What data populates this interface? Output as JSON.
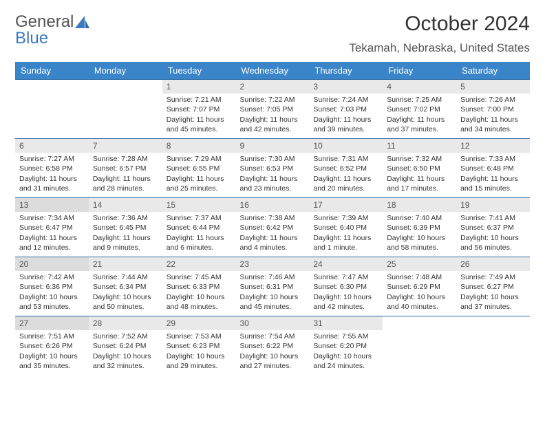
{
  "logo": {
    "word1": "General",
    "word2": "Blue"
  },
  "title": "October 2024",
  "location": "Tekamah, Nebraska, United States",
  "colors": {
    "header_bg": "#3a85c9",
    "header_text": "#ffffff",
    "row_divider": "#2b6aa3",
    "daynum_bg": "#e9e9e9",
    "daynum_bg_shaded": "#dcdcdc",
    "text": "#333333",
    "logo_gray": "#555555",
    "logo_blue": "#3a7ac0",
    "background": "#ffffff"
  },
  "day_headers": [
    "Sunday",
    "Monday",
    "Tuesday",
    "Wednesday",
    "Thursday",
    "Friday",
    "Saturday"
  ],
  "weeks": [
    [
      null,
      null,
      {
        "n": "1",
        "sr": "Sunrise: 7:21 AM",
        "ss": "Sunset: 7:07 PM",
        "d1": "Daylight: 11 hours",
        "d2": "and 45 minutes."
      },
      {
        "n": "2",
        "sr": "Sunrise: 7:22 AM",
        "ss": "Sunset: 7:05 PM",
        "d1": "Daylight: 11 hours",
        "d2": "and 42 minutes."
      },
      {
        "n": "3",
        "sr": "Sunrise: 7:24 AM",
        "ss": "Sunset: 7:03 PM",
        "d1": "Daylight: 11 hours",
        "d2": "and 39 minutes."
      },
      {
        "n": "4",
        "sr": "Sunrise: 7:25 AM",
        "ss": "Sunset: 7:02 PM",
        "d1": "Daylight: 11 hours",
        "d2": "and 37 minutes."
      },
      {
        "n": "5",
        "sr": "Sunrise: 7:26 AM",
        "ss": "Sunset: 7:00 PM",
        "d1": "Daylight: 11 hours",
        "d2": "and 34 minutes."
      }
    ],
    [
      {
        "n": "6",
        "sr": "Sunrise: 7:27 AM",
        "ss": "Sunset: 6:58 PM",
        "d1": "Daylight: 11 hours",
        "d2": "and 31 minutes."
      },
      {
        "n": "7",
        "sr": "Sunrise: 7:28 AM",
        "ss": "Sunset: 6:57 PM",
        "d1": "Daylight: 11 hours",
        "d2": "and 28 minutes."
      },
      {
        "n": "8",
        "sr": "Sunrise: 7:29 AM",
        "ss": "Sunset: 6:55 PM",
        "d1": "Daylight: 11 hours",
        "d2": "and 25 minutes."
      },
      {
        "n": "9",
        "sr": "Sunrise: 7:30 AM",
        "ss": "Sunset: 6:53 PM",
        "d1": "Daylight: 11 hours",
        "d2": "and 23 minutes."
      },
      {
        "n": "10",
        "sr": "Sunrise: 7:31 AM",
        "ss": "Sunset: 6:52 PM",
        "d1": "Daylight: 11 hours",
        "d2": "and 20 minutes."
      },
      {
        "n": "11",
        "sr": "Sunrise: 7:32 AM",
        "ss": "Sunset: 6:50 PM",
        "d1": "Daylight: 11 hours",
        "d2": "and 17 minutes."
      },
      {
        "n": "12",
        "sr": "Sunrise: 7:33 AM",
        "ss": "Sunset: 6:48 PM",
        "d1": "Daylight: 11 hours",
        "d2": "and 15 minutes."
      }
    ],
    [
      {
        "n": "13",
        "sr": "Sunrise: 7:34 AM",
        "ss": "Sunset: 6:47 PM",
        "d1": "Daylight: 11 hours",
        "d2": "and 12 minutes.",
        "shaded": true
      },
      {
        "n": "14",
        "sr": "Sunrise: 7:36 AM",
        "ss": "Sunset: 6:45 PM",
        "d1": "Daylight: 11 hours",
        "d2": "and 9 minutes."
      },
      {
        "n": "15",
        "sr": "Sunrise: 7:37 AM",
        "ss": "Sunset: 6:44 PM",
        "d1": "Daylight: 11 hours",
        "d2": "and 6 minutes."
      },
      {
        "n": "16",
        "sr": "Sunrise: 7:38 AM",
        "ss": "Sunset: 6:42 PM",
        "d1": "Daylight: 11 hours",
        "d2": "and 4 minutes."
      },
      {
        "n": "17",
        "sr": "Sunrise: 7:39 AM",
        "ss": "Sunset: 6:40 PM",
        "d1": "Daylight: 11 hours",
        "d2": "and 1 minute."
      },
      {
        "n": "18",
        "sr": "Sunrise: 7:40 AM",
        "ss": "Sunset: 6:39 PM",
        "d1": "Daylight: 10 hours",
        "d2": "and 58 minutes."
      },
      {
        "n": "19",
        "sr": "Sunrise: 7:41 AM",
        "ss": "Sunset: 6:37 PM",
        "d1": "Daylight: 10 hours",
        "d2": "and 56 minutes."
      }
    ],
    [
      {
        "n": "20",
        "sr": "Sunrise: 7:42 AM",
        "ss": "Sunset: 6:36 PM",
        "d1": "Daylight: 10 hours",
        "d2": "and 53 minutes.",
        "shaded": true
      },
      {
        "n": "21",
        "sr": "Sunrise: 7:44 AM",
        "ss": "Sunset: 6:34 PM",
        "d1": "Daylight: 10 hours",
        "d2": "and 50 minutes."
      },
      {
        "n": "22",
        "sr": "Sunrise: 7:45 AM",
        "ss": "Sunset: 6:33 PM",
        "d1": "Daylight: 10 hours",
        "d2": "and 48 minutes."
      },
      {
        "n": "23",
        "sr": "Sunrise: 7:46 AM",
        "ss": "Sunset: 6:31 PM",
        "d1": "Daylight: 10 hours",
        "d2": "and 45 minutes."
      },
      {
        "n": "24",
        "sr": "Sunrise: 7:47 AM",
        "ss": "Sunset: 6:30 PM",
        "d1": "Daylight: 10 hours",
        "d2": "and 42 minutes."
      },
      {
        "n": "25",
        "sr": "Sunrise: 7:48 AM",
        "ss": "Sunset: 6:29 PM",
        "d1": "Daylight: 10 hours",
        "d2": "and 40 minutes."
      },
      {
        "n": "26",
        "sr": "Sunrise: 7:49 AM",
        "ss": "Sunset: 6:27 PM",
        "d1": "Daylight: 10 hours",
        "d2": "and 37 minutes."
      }
    ],
    [
      {
        "n": "27",
        "sr": "Sunrise: 7:51 AM",
        "ss": "Sunset: 6:26 PM",
        "d1": "Daylight: 10 hours",
        "d2": "and 35 minutes.",
        "shaded": true
      },
      {
        "n": "28",
        "sr": "Sunrise: 7:52 AM",
        "ss": "Sunset: 6:24 PM",
        "d1": "Daylight: 10 hours",
        "d2": "and 32 minutes."
      },
      {
        "n": "29",
        "sr": "Sunrise: 7:53 AM",
        "ss": "Sunset: 6:23 PM",
        "d1": "Daylight: 10 hours",
        "d2": "and 29 minutes."
      },
      {
        "n": "30",
        "sr": "Sunrise: 7:54 AM",
        "ss": "Sunset: 6:22 PM",
        "d1": "Daylight: 10 hours",
        "d2": "and 27 minutes."
      },
      {
        "n": "31",
        "sr": "Sunrise: 7:55 AM",
        "ss": "Sunset: 6:20 PM",
        "d1": "Daylight: 10 hours",
        "d2": "and 24 minutes."
      },
      null,
      null
    ]
  ]
}
